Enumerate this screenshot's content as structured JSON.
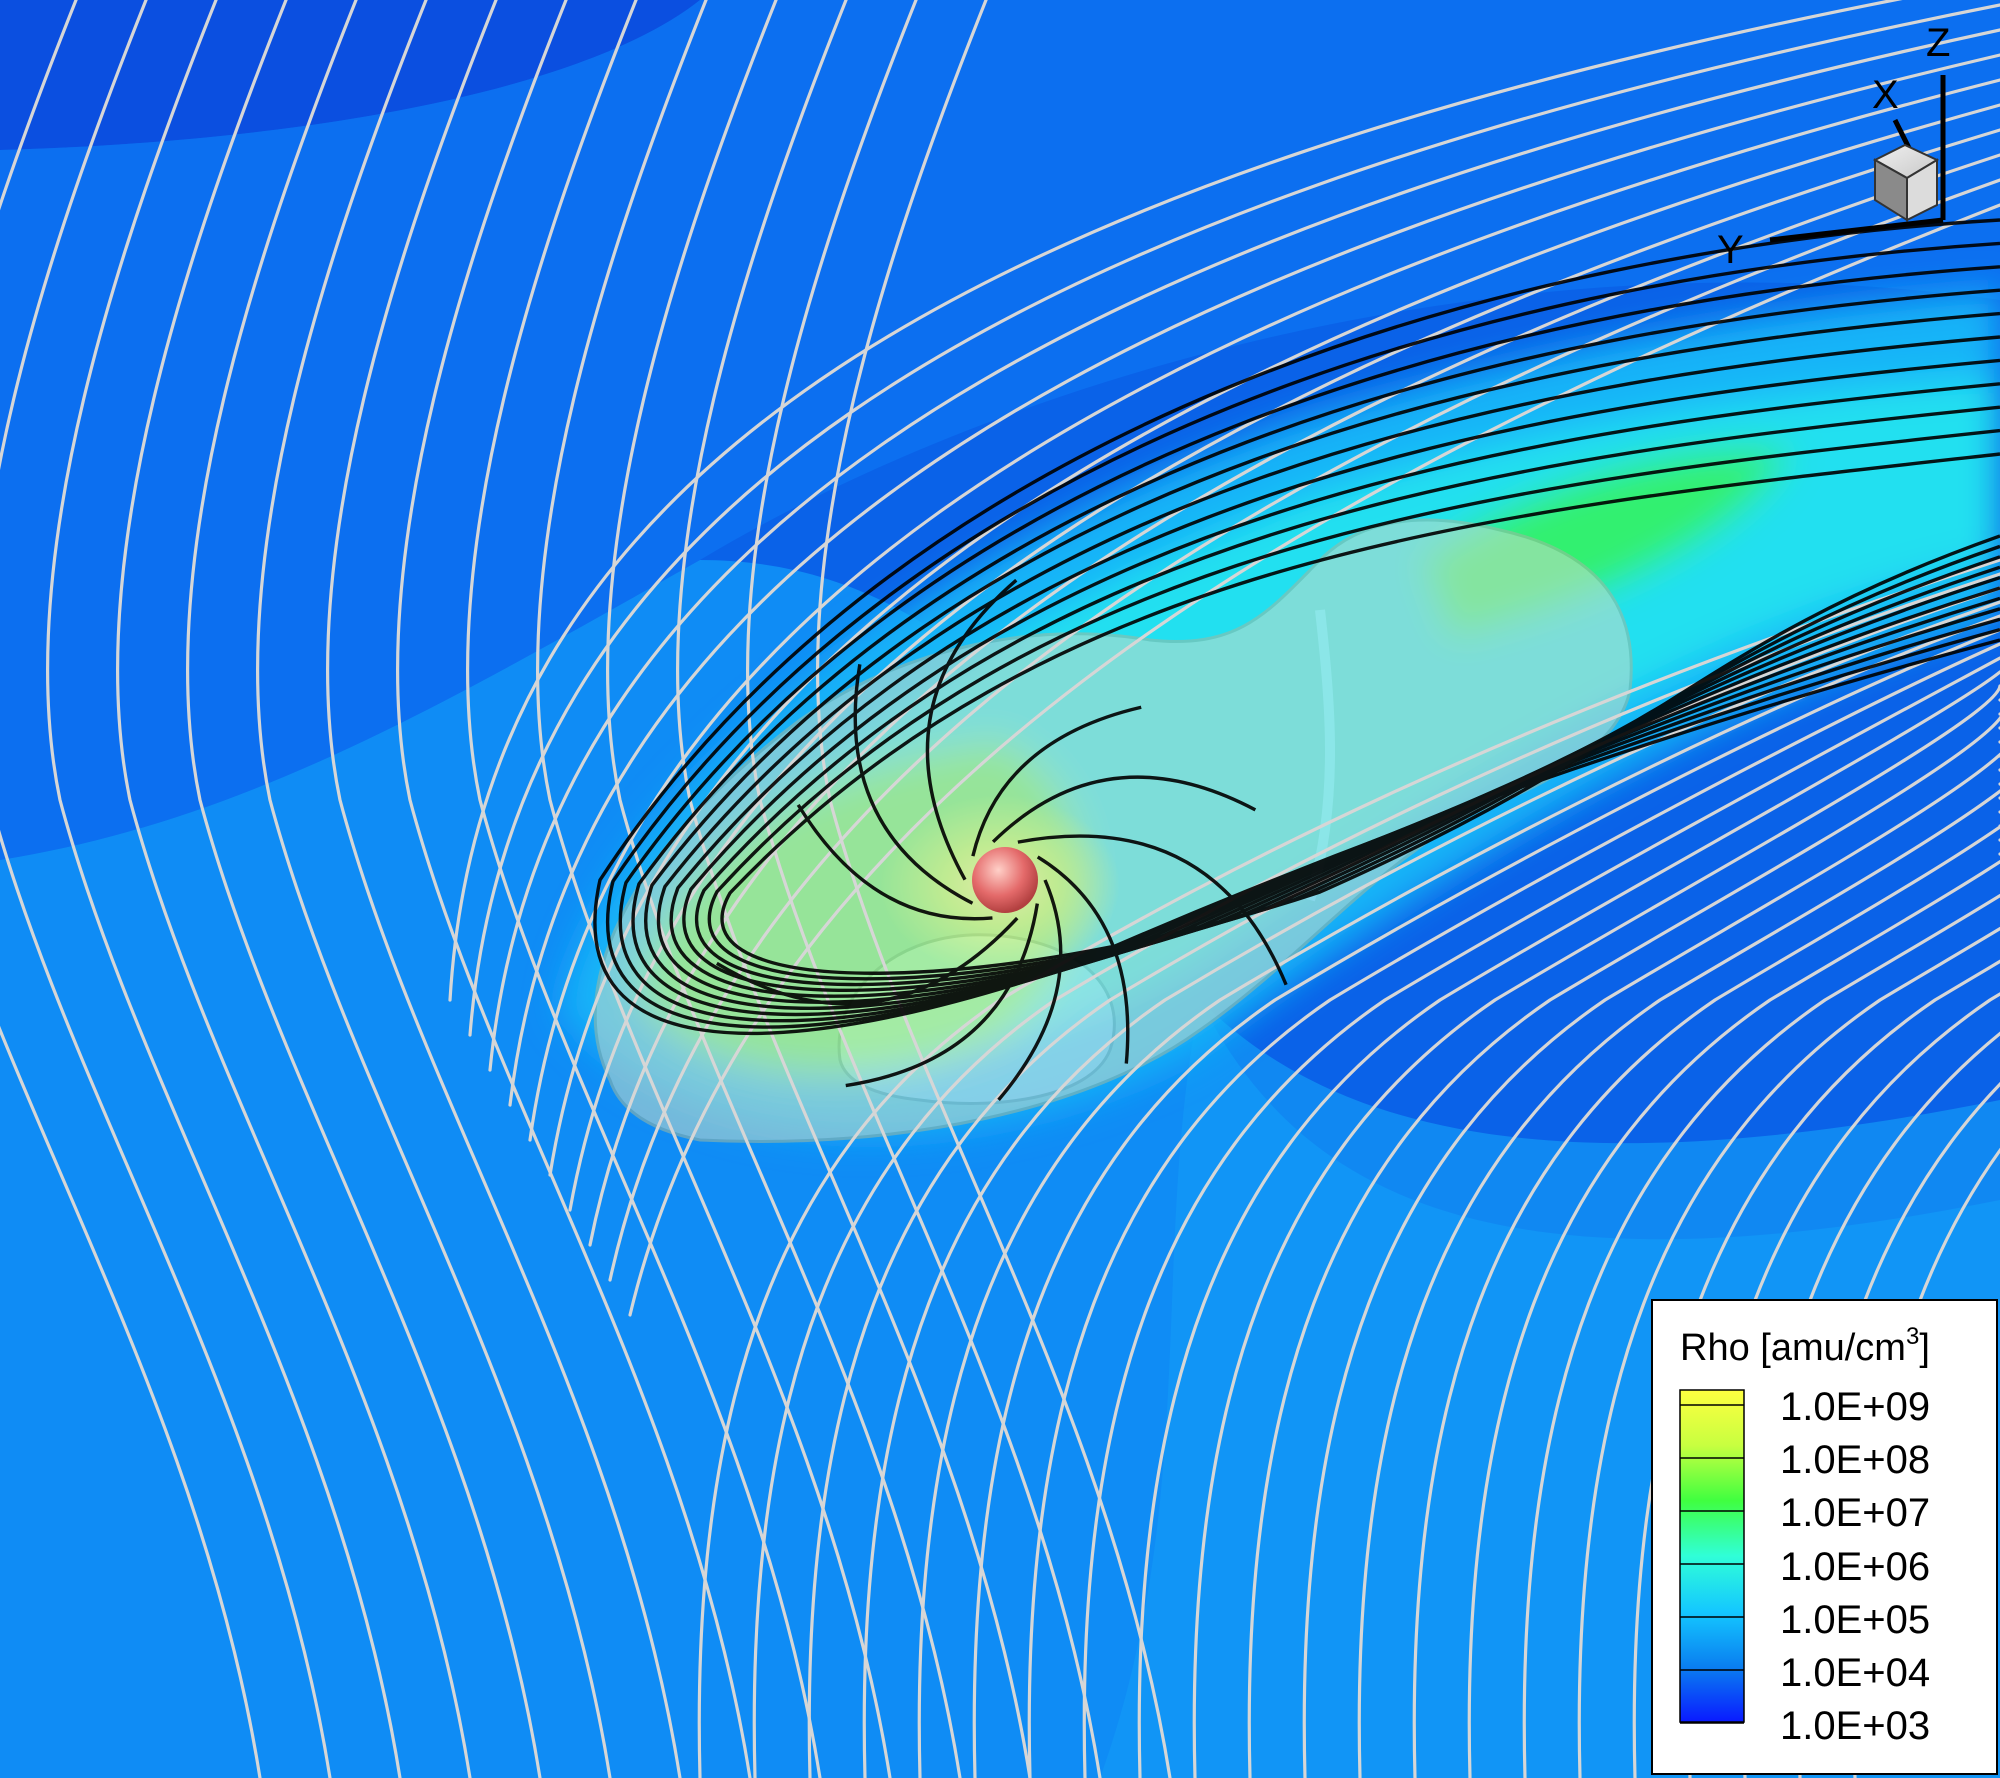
{
  "figure": {
    "background_color": "#0a62e8",
    "streamline_color": "#d6d6d6",
    "field_line_color": "#000000",
    "body_color": "#e46a6a",
    "isosurface_color": "#c8dcc8"
  },
  "axes_triad": {
    "x_label": "X",
    "y_label": "Y",
    "z_label": "Z"
  },
  "legend": {
    "title_prefix": "Rho [amu/cm",
    "title_superscript": "3",
    "title_suffix": "]",
    "labels": [
      "1.0E+09",
      "1.0E+08",
      "1.0E+07",
      "1.0E+06",
      "1.0E+05",
      "1.0E+04",
      "1.0E+03"
    ],
    "colors": [
      "#ffff40",
      "#c8ff40",
      "#40ff40",
      "#30ffd8",
      "#14c8ff",
      "#0a7ff0",
      "#0a1aff"
    ]
  }
}
